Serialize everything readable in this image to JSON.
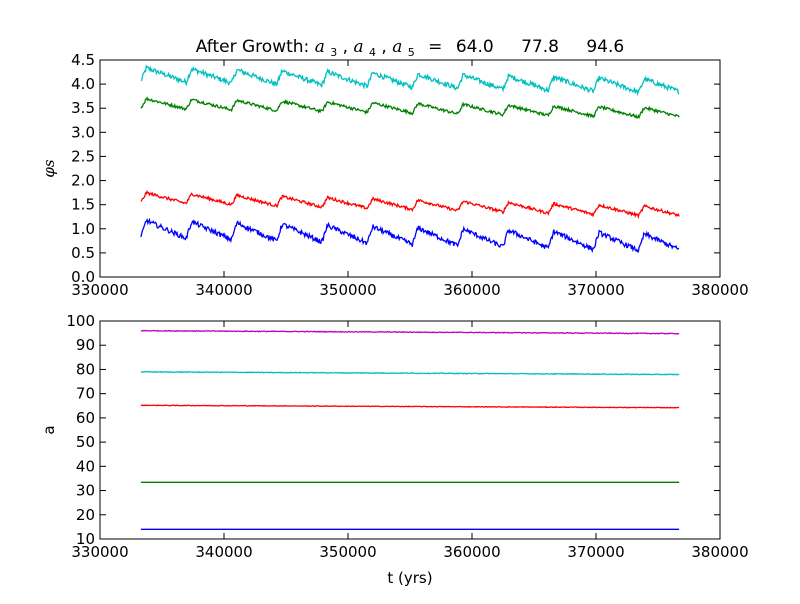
{
  "title": {
    "prefix": "After Growth: ",
    "math_labels": [
      {
        "base": "a",
        "sub": "3"
      },
      {
        "base": "a",
        "sub": "4"
      },
      {
        "base": "a",
        "sub": "5"
      }
    ],
    "equals": "=",
    "values": [
      "64.0",
      "77.8",
      "94.6"
    ]
  },
  "chart_data": [
    {
      "type": "line",
      "ylabel": "φs",
      "xlabel": "",
      "xlim": [
        330000,
        380000
      ],
      "ylim": [
        0.0,
        4.5
      ],
      "x_ticks": [
        "330000",
        "340000",
        "350000",
        "360000",
        "370000",
        "380000"
      ],
      "y_ticks": [
        "0.0",
        "0.5",
        "1.0",
        "1.5",
        "2.0",
        "2.5",
        "3.0",
        "3.5",
        "4.0",
        "4.5"
      ],
      "x_range": [
        333300,
        376700
      ],
      "sawtooth_period_yrs": 3650,
      "series": [
        {
          "color": "#00bfbf",
          "start": 4.2,
          "end": 3.95,
          "amplitude": 0.28,
          "noise": 0.05
        },
        {
          "color": "#008000",
          "start": 3.6,
          "end": 3.4,
          "amplitude": 0.2,
          "noise": 0.03
        },
        {
          "color": "#ff0000",
          "start": 1.65,
          "end": 1.35,
          "amplitude": 0.2,
          "noise": 0.03
        },
        {
          "color": "#0000ff",
          "start": 1.0,
          "end": 0.7,
          "amplitude": 0.35,
          "noise": 0.05
        }
      ]
    },
    {
      "type": "line",
      "ylabel": "a",
      "xlabel": "t (yrs)",
      "xlim": [
        330000,
        380000
      ],
      "ylim": [
        10,
        100
      ],
      "x_ticks": [
        "330000",
        "340000",
        "350000",
        "360000",
        "370000",
        "380000"
      ],
      "y_ticks": [
        "10",
        "20",
        "30",
        "40",
        "50",
        "60",
        "70",
        "80",
        "90",
        "100"
      ],
      "x_range": [
        333300,
        376700
      ],
      "series": [
        {
          "color": "#bf00bf",
          "start": 96.0,
          "end": 94.8,
          "noise": 0.15
        },
        {
          "color": "#00bfbf",
          "start": 79.0,
          "end": 77.9,
          "noise": 0.15
        },
        {
          "color": "#ff0000",
          "start": 65.2,
          "end": 64.2,
          "noise": 0.12
        },
        {
          "color": "#008000",
          "start": 33.4,
          "end": 33.4,
          "noise": 0.0
        },
        {
          "color": "#0000ff",
          "start": 14.0,
          "end": 14.0,
          "noise": 0.0
        }
      ]
    }
  ]
}
